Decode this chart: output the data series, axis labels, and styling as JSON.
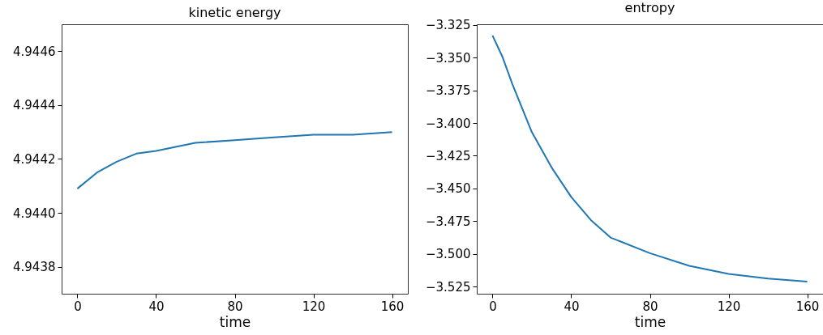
{
  "chart_data": [
    {
      "type": "line",
      "title": "kinetic energy",
      "xlabel": "time",
      "x": [
        0,
        10,
        20,
        30,
        40,
        60,
        80,
        100,
        120,
        140,
        160
      ],
      "series": [
        {
          "color": "#1f77b4",
          "values": [
            4.94409,
            4.94415,
            4.94419,
            4.94422,
            4.94423,
            4.94426,
            4.94427,
            4.94428,
            4.94429,
            4.94429,
            4.9443
          ]
        }
      ],
      "xlim": [
        -8,
        168
      ],
      "xticks": [
        0,
        40,
        80,
        120,
        160
      ],
      "ylim": [
        4.9437,
        4.9447
      ],
      "yticks": [
        {
          "value": 4.9438,
          "label": "4.9438"
        },
        {
          "value": 4.944,
          "label": "4.9440"
        },
        {
          "value": 4.9442,
          "label": "4.9442"
        },
        {
          "value": 4.9444,
          "label": "4.9444"
        },
        {
          "value": 4.9446,
          "label": "4.9446"
        }
      ]
    },
    {
      "type": "line",
      "title": "entropy",
      "xlabel": "time",
      "x": [
        0,
        5,
        10,
        20,
        30,
        40,
        50,
        60,
        80,
        100,
        120,
        140,
        160
      ],
      "series": [
        {
          "color": "#1f77b4",
          "values": [
            -3.3332,
            -3.3493,
            -3.3699,
            -3.407,
            -3.4339,
            -3.4565,
            -3.4741,
            -3.4875,
            -3.4994,
            -3.5091,
            -3.5153,
            -3.5188,
            -3.5211
          ]
        }
      ],
      "xlim": [
        -8,
        168
      ],
      "xticks": [
        0,
        40,
        80,
        120,
        160
      ],
      "ylim": [
        -3.5304,
        -3.3246
      ],
      "yticks": [
        {
          "value": -3.525,
          "label": "−3.525"
        },
        {
          "value": -3.5,
          "label": "−3.500"
        },
        {
          "value": -3.475,
          "label": "−3.475"
        },
        {
          "value": -3.45,
          "label": "−3.450"
        },
        {
          "value": -3.425,
          "label": "−3.425"
        },
        {
          "value": -3.4,
          "label": "−3.400"
        },
        {
          "value": -3.375,
          "label": "−3.375"
        },
        {
          "value": -3.35,
          "label": "−3.350"
        },
        {
          "value": -3.325,
          "label": "−3.325"
        }
      ]
    }
  ]
}
